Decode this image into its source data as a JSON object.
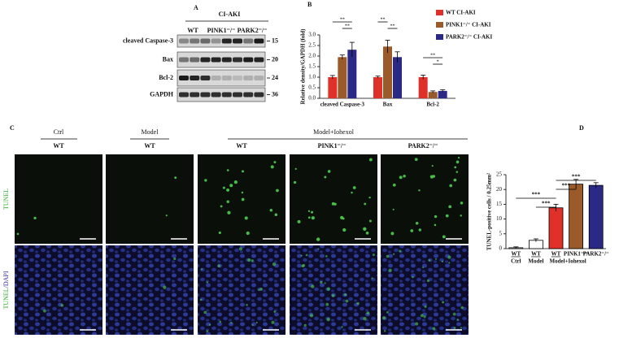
{
  "panel_a": {
    "label": "A",
    "group_header": "CI-AKI",
    "lanes": [
      "WT",
      "PINK1⁻/⁻",
      "PARK2⁻/⁻"
    ],
    "rows": [
      {
        "protein": "cleaved Caspase-3",
        "size": "15"
      },
      {
        "protein": "Bax",
        "size": "20"
      },
      {
        "protein": "Bcl-2",
        "size": "24"
      },
      {
        "protein": "GAPDH",
        "size": "36"
      }
    ]
  },
  "panel_c": {
    "label": "C",
    "columns": [
      {
        "group": "Ctrl",
        "genotype": "WT"
      },
      {
        "group": "Model",
        "genotype": "WT"
      }
    ],
    "group_header": "Model+Iohexol",
    "group_genotypes": [
      "WT",
      "PINK1⁻/⁻",
      "PARK2⁻/⁻"
    ],
    "row1_label": "TUNEL",
    "row2_label_parts": [
      "TUNEL",
      "/DAPI"
    ]
  },
  "chart_data": [
    {
      "type": "grouped-bar",
      "panel_label": "B",
      "y_label": "Relative density/GAPDH (fold)",
      "categories": [
        "cleaved Caspase-3",
        "Bax",
        "Bcl-2"
      ],
      "series": [
        {
          "name": "WT CI-AKI",
          "color": "#e0302a",
          "values": [
            1.0,
            1.0,
            1.0
          ],
          "errors": [
            0.08,
            0.05,
            0.1
          ]
        },
        {
          "name": "PINK1⁻/⁻ CI-AKI",
          "color": "#9a5a2a",
          "values": [
            1.95,
            2.45,
            0.3
          ],
          "errors": [
            0.1,
            0.3,
            0.05
          ]
        },
        {
          "name": "PARK2⁻/⁻ CI-AKI",
          "color": "#2a2a86",
          "values": [
            2.3,
            1.95,
            0.35
          ],
          "errors": [
            0.35,
            0.25,
            0.05
          ]
        }
      ],
      "ylim": [
        0,
        3.0
      ],
      "yticks": [
        {
          "value": 0,
          "label": "0.0"
        },
        {
          "value": 0.5,
          "label": "0.5"
        },
        {
          "value": 1,
          "label": "1.0"
        },
        {
          "value": 1.5,
          "label": "1.5"
        },
        {
          "value": 2,
          "label": "2.0"
        },
        {
          "value": 2.5,
          "label": "2.5"
        },
        {
          "value": 3,
          "label": "3.0"
        }
      ],
      "annotations": [
        {
          "text": "**",
          "category": 0,
          "series": [
            0,
            2
          ]
        },
        {
          "text": "**",
          "category": 0,
          "series": [
            1,
            2
          ]
        },
        {
          "text": "**",
          "category": 1,
          "series": [
            0,
            1
          ]
        },
        {
          "text": "**",
          "category": 1,
          "series": [
            1,
            2
          ]
        },
        {
          "text": "**",
          "category": 2,
          "series": [
            0,
            2
          ]
        },
        {
          "text": "*",
          "category": 2,
          "series": [
            1,
            2
          ]
        }
      ]
    },
    {
      "type": "bar",
      "panel_label": "D",
      "y_label": "TUNEL-positive cells / 0.25mm²",
      "categories": [
        "WT",
        "WT",
        "WT",
        "PINK1⁻/⁻",
        "PARK2⁻/⁻"
      ],
      "values": [
        0.3,
        2.8,
        13.8,
        21.8,
        21.4
      ],
      "errors": [
        0.3,
        0.5,
        1.2,
        1.6,
        0.9
      ],
      "colors": [
        "#ffffff",
        "#ffffff",
        "#e0302a",
        "#9a5a2a",
        "#2a2a86"
      ],
      "groups": [
        {
          "label": "Ctrl",
          "span": [
            0,
            0
          ]
        },
        {
          "label": "Model",
          "span": [
            1,
            1
          ]
        },
        {
          "label": "Model+Iohexol",
          "span": [
            2,
            4
          ]
        }
      ],
      "ylim": [
        0,
        25
      ],
      "yticks": [
        0,
        5,
        10,
        15,
        20,
        25
      ],
      "annotations": [
        {
          "text": "***",
          "categories": [
            1,
            2
          ]
        },
        {
          "text": "***",
          "categories": [
            0,
            2
          ]
        },
        {
          "text": "***",
          "categories": [
            2,
            3
          ]
        },
        {
          "text": "***",
          "categories": [
            2,
            4
          ]
        }
      ]
    }
  ]
}
